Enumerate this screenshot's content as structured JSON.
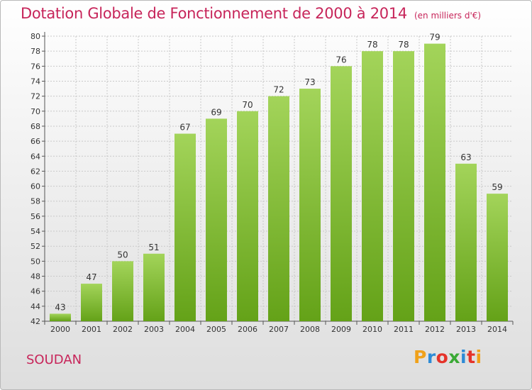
{
  "chart_data": {
    "type": "bar",
    "title": "Dotation Globale de Fonctionnement de 2000 à 2014",
    "subtitle": "(en milliers d'€)",
    "categories": [
      "2000",
      "2001",
      "2002",
      "2003",
      "2004",
      "2005",
      "2006",
      "2007",
      "2008",
      "2009",
      "2010",
      "2011",
      "2012",
      "2013",
      "2014"
    ],
    "values": [
      43,
      47,
      50,
      51,
      67,
      69,
      70,
      72,
      73,
      76,
      78,
      78,
      79,
      63,
      59
    ],
    "ylim": [
      42,
      80
    ],
    "yticks": [
      42,
      44,
      46,
      48,
      50,
      52,
      54,
      56,
      58,
      60,
      62,
      64,
      66,
      68,
      70,
      72,
      74,
      76,
      78,
      80
    ],
    "grid": true,
    "colors": {
      "bar_light": "#a3d45a",
      "bar_dark": "#64a218",
      "grid": "#c9c9c9",
      "title": "#c7255a"
    }
  },
  "footer": {
    "commune": "SOUDAN",
    "logo_text": "Proxiti"
  },
  "logo_colors": [
    "#f0a11a",
    "#2e8bd6",
    "#e5332a",
    "#3aa935",
    "#2e8bd6",
    "#e5332a",
    "#f0a11a"
  ]
}
